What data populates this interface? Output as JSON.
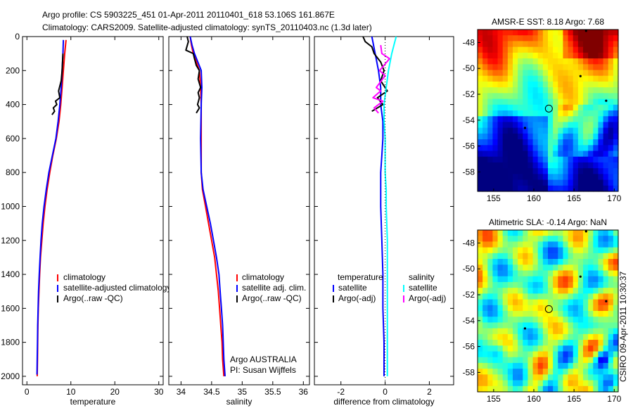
{
  "header": {
    "line1": "Argo profile: CS 5903225_451 01-Apr-2011 20110401_618 53.106S 161.867E",
    "line2": "Climatology: CARS2009. Satellite-adjusted climatology: synTS_20110403.nc (1.3d later)"
  },
  "credit": "CSIRO 09-Apr-2011 10:30:37",
  "colors": {
    "climatology": "#ff0000",
    "satellite": "#0000ff",
    "argo": "#000000",
    "satellite_salinity": "#00ffff",
    "argo_adj_salinity": "#ff00ff"
  },
  "chart_data": [
    {
      "type": "line",
      "id": "temperature",
      "xlabel": "temperature",
      "ylabel": "",
      "xlim": [
        -1,
        31
      ],
      "ylim": [
        2050,
        0
      ],
      "xticks": [
        0,
        10,
        20,
        30
      ],
      "yticks": [
        0,
        200,
        400,
        600,
        800,
        1000,
        1200,
        1400,
        1600,
        1800,
        2000
      ],
      "legend": [
        "climatology",
        "satellite-adjusted climatology",
        "Argo(..raw -QC)"
      ],
      "series": [
        {
          "name": "climatology",
          "color": "#ff0000",
          "points": [
            [
              8.9,
              20
            ],
            [
              8.6,
              100
            ],
            [
              8.3,
              200
            ],
            [
              8.0,
              300
            ],
            [
              7.7,
              400
            ],
            [
              7.3,
              500
            ],
            [
              6.7,
              600
            ],
            [
              5.9,
              700
            ],
            [
              5.2,
              800
            ],
            [
              4.6,
              900
            ],
            [
              4.1,
              1000
            ],
            [
              3.7,
              1100
            ],
            [
              3.4,
              1200
            ],
            [
              3.1,
              1300
            ],
            [
              2.9,
              1400
            ],
            [
              2.75,
              1500
            ],
            [
              2.6,
              1600
            ],
            [
              2.5,
              1700
            ],
            [
              2.45,
              1800
            ],
            [
              2.4,
              1900
            ],
            [
              2.35,
              2000
            ]
          ]
        },
        {
          "name": "satellite-adjusted climatology",
          "color": "#0000ff",
          "points": [
            [
              8.3,
              20
            ],
            [
              8.2,
              100
            ],
            [
              8.0,
              200
            ],
            [
              7.8,
              300
            ],
            [
              7.5,
              400
            ],
            [
              7.1,
              500
            ],
            [
              6.6,
              600
            ],
            [
              5.8,
              700
            ],
            [
              5.0,
              800
            ],
            [
              4.4,
              900
            ],
            [
              3.9,
              1000
            ],
            [
              3.5,
              1100
            ],
            [
              3.2,
              1200
            ],
            [
              3.0,
              1300
            ],
            [
              2.8,
              1400
            ],
            [
              2.65,
              1500
            ],
            [
              2.55,
              1600
            ],
            [
              2.45,
              1700
            ],
            [
              2.4,
              1800
            ],
            [
              2.35,
              1900
            ],
            [
              2.3,
              1990
            ]
          ]
        },
        {
          "name": "Argo(..raw -QC)",
          "color": "#000000",
          "points": [
            [
              8.2,
              100
            ],
            [
              8.0,
              200
            ],
            [
              7.8,
              260
            ],
            [
              7.2,
              320
            ],
            [
              7.5,
              360
            ],
            [
              6.5,
              380
            ],
            [
              6.8,
              400
            ],
            [
              6.0,
              420
            ],
            [
              6.3,
              440
            ],
            [
              5.7,
              460
            ]
          ]
        }
      ]
    },
    {
      "type": "line",
      "id": "salinity",
      "xlabel": "salinity",
      "ylabel": "",
      "xlim": [
        33.8,
        36.1
      ],
      "ylim": [
        2050,
        0
      ],
      "xticks": [
        34,
        34.5,
        35,
        35.5,
        36
      ],
      "yticks": [
        0,
        200,
        400,
        600,
        800,
        1000,
        1200,
        1400,
        1600,
        1800,
        2000
      ],
      "legend": [
        "climatology",
        "satellite adj. clim.",
        "Argo(..raw -QC)"
      ],
      "annotation": [
        "Argo AUSTRALIA",
        "PI: Susan Wijffels"
      ],
      "series": [
        {
          "name": "climatology",
          "color": "#ff0000",
          "points": [
            [
              34.15,
              0
            ],
            [
              34.17,
              50
            ],
            [
              34.2,
              100
            ],
            [
              34.3,
              200
            ],
            [
              34.32,
              300
            ],
            [
              34.33,
              400
            ],
            [
              34.33,
              600
            ],
            [
              34.33,
              800
            ],
            [
              34.35,
              900
            ],
            [
              34.4,
              1000
            ],
            [
              34.45,
              1100
            ],
            [
              34.5,
              1200
            ],
            [
              34.55,
              1300
            ],
            [
              34.58,
              1400
            ],
            [
              34.61,
              1500
            ],
            [
              34.63,
              1600
            ],
            [
              34.65,
              1700
            ],
            [
              34.67,
              1800
            ],
            [
              34.68,
              1900
            ],
            [
              34.7,
              2000
            ]
          ]
        },
        {
          "name": "satellite adj. clim.",
          "color": "#0000ff",
          "points": [
            [
              34.15,
              0
            ],
            [
              34.18,
              50
            ],
            [
              34.22,
              100
            ],
            [
              34.33,
              200
            ],
            [
              34.34,
              300
            ],
            [
              34.33,
              400
            ],
            [
              34.32,
              600
            ],
            [
              34.33,
              800
            ],
            [
              34.36,
              900
            ],
            [
              34.42,
              1000
            ],
            [
              34.48,
              1100
            ],
            [
              34.53,
              1200
            ],
            [
              34.58,
              1300
            ],
            [
              34.62,
              1400
            ],
            [
              34.64,
              1500
            ],
            [
              34.66,
              1600
            ],
            [
              34.68,
              1700
            ],
            [
              34.69,
              1800
            ],
            [
              34.7,
              1900
            ],
            [
              34.72,
              2000
            ]
          ]
        },
        {
          "name": "Argo(..raw -QC)",
          "color": "#000000",
          "points": [
            [
              34.1,
              0
            ],
            [
              34.12,
              30
            ],
            [
              34.08,
              80
            ],
            [
              34.2,
              100
            ],
            [
              34.22,
              130
            ],
            [
              34.25,
              170
            ],
            [
              34.3,
              200
            ],
            [
              34.28,
              250
            ],
            [
              34.32,
              300
            ],
            [
              34.28,
              330
            ],
            [
              34.3,
              360
            ],
            [
              34.27,
              400
            ],
            [
              34.3,
              420
            ],
            [
              34.25,
              450
            ]
          ]
        }
      ]
    },
    {
      "type": "line",
      "id": "difference",
      "xlabel": "difference from climatology",
      "ylabel": "",
      "xlim": [
        -3.2,
        3.1
      ],
      "ylim": [
        2050,
        0
      ],
      "xticks": [
        -2,
        0,
        2
      ],
      "yticks": [
        0,
        200,
        400,
        600,
        800,
        1000,
        1200,
        1400,
        1600,
        1800,
        2000
      ],
      "legend_left": [
        "temperature",
        "satellite",
        "Argo(-adj)"
      ],
      "legend_right": [
        "salinity",
        "satellite",
        "Argo(-adj)"
      ],
      "series": [
        {
          "name": "temperature satellite",
          "color": "#0000ff",
          "points": [
            [
              -0.6,
              0
            ],
            [
              -0.45,
              100
            ],
            [
              -0.3,
              200
            ],
            [
              -0.2,
              300
            ],
            [
              -0.2,
              400
            ],
            [
              -0.1,
              500
            ],
            [
              -0.1,
              600
            ],
            [
              -0.15,
              700
            ],
            [
              -0.2,
              800
            ],
            [
              -0.2,
              900
            ],
            [
              -0.2,
              1000
            ],
            [
              -0.15,
              1200
            ],
            [
              -0.1,
              1400
            ],
            [
              -0.1,
              1600
            ],
            [
              -0.05,
              1800
            ],
            [
              -0.05,
              2000
            ]
          ]
        },
        {
          "name": "temperature Argo(-adj)",
          "color": "#000000",
          "points": [
            [
              -1.0,
              0
            ],
            [
              -0.9,
              30
            ],
            [
              -0.6,
              60
            ],
            [
              -0.5,
              100
            ],
            [
              -0.2,
              150
            ],
            [
              -0.05,
              200
            ],
            [
              -0.2,
              260
            ],
            [
              0.1,
              320
            ],
            [
              -0.35,
              360
            ],
            [
              -0.1,
              400
            ],
            [
              -0.6,
              440
            ]
          ]
        },
        {
          "name": "salinity satellite",
          "color": "#00ffff",
          "points": [
            [
              0.5,
              0
            ],
            [
              0.4,
              50
            ],
            [
              0.3,
              100
            ],
            [
              0.15,
              200
            ],
            [
              0.05,
              300
            ],
            [
              -0.05,
              400
            ],
            [
              -0.05,
              500
            ],
            [
              0.0,
              600
            ],
            [
              0.0,
              700
            ],
            [
              0.0,
              800
            ],
            [
              0.05,
              900
            ],
            [
              0.05,
              1000
            ],
            [
              0.1,
              1200
            ],
            [
              0.1,
              1400
            ],
            [
              0.1,
              1600
            ],
            [
              0.1,
              1800
            ],
            [
              0.1,
              2000
            ]
          ]
        },
        {
          "name": "salinity Argo(-adj)",
          "color": "#ff00ff",
          "points": [
            [
              -0.2,
              50
            ],
            [
              -0.15,
              100
            ],
            [
              0.2,
              130
            ],
            [
              -0.25,
              200
            ],
            [
              0.0,
              230
            ],
            [
              -0.4,
              300
            ],
            [
              -0.2,
              320
            ],
            [
              -0.55,
              360
            ],
            [
              -0.1,
              380
            ],
            [
              -0.5,
              420
            ],
            [
              -0.3,
              450
            ]
          ]
        }
      ]
    },
    {
      "type": "heatmap",
      "id": "sst-map",
      "title": "AMSR-E SST: 8.18 Argo: 7.68",
      "xlim": [
        153,
        170.5
      ],
      "ylim": [
        -59.5,
        -47
      ],
      "xticks": [
        155,
        160,
        165,
        170
      ],
      "yticks": [
        -48,
        -50,
        -52,
        -54,
        -56,
        -58
      ],
      "marker": {
        "lon": 161.867,
        "lat": -53.106
      }
    },
    {
      "type": "heatmap",
      "id": "sla-map",
      "title": "Altimetric SLA: -0.14 Argo: NaN",
      "xlim": [
        153,
        170.5
      ],
      "ylim": [
        -59.5,
        -47
      ],
      "xticks": [
        155,
        160,
        165,
        170
      ],
      "yticks": [
        -48,
        -50,
        -52,
        -54,
        -56,
        -58
      ],
      "marker": {
        "lon": 161.867,
        "lat": -53.106
      }
    }
  ]
}
